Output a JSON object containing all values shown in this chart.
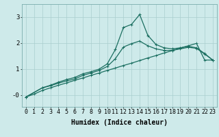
{
  "xlabel": "Humidex (Indice chaleur)",
  "bg_color": "#ceeaea",
  "line_color": "#1a6e60",
  "xlim": [
    -0.5,
    23.5
  ],
  "ylim": [
    -0.45,
    3.5
  ],
  "xticks": [
    0,
    1,
    2,
    3,
    4,
    5,
    6,
    7,
    8,
    9,
    10,
    11,
    12,
    13,
    14,
    15,
    16,
    17,
    18,
    19,
    20,
    21,
    22,
    23
  ],
  "yticks": [
    0,
    1,
    2,
    3
  ],
  "ytick_labels": [
    "-0",
    "1",
    "2",
    "3"
  ],
  "series1_x": [
    0,
    1,
    2,
    3,
    4,
    5,
    6,
    7,
    8,
    9,
    10,
    11,
    12,
    13,
    14,
    15,
    16,
    17,
    18,
    19,
    20,
    21,
    22,
    23
  ],
  "series1_y": [
    -0.07,
    0.04,
    0.18,
    0.28,
    0.38,
    0.47,
    0.57,
    0.66,
    0.76,
    0.85,
    0.95,
    1.04,
    1.14,
    1.23,
    1.33,
    1.43,
    1.52,
    1.62,
    1.71,
    1.81,
    1.9,
    1.99,
    1.35,
    1.35
  ],
  "series2_x": [
    0,
    2,
    3,
    4,
    5,
    6,
    7,
    8,
    9,
    10,
    11,
    12,
    13,
    14,
    15,
    16,
    17,
    18,
    19,
    20,
    21,
    22,
    23
  ],
  "series2_y": [
    -0.07,
    0.28,
    0.38,
    0.5,
    0.6,
    0.68,
    0.82,
    0.9,
    1.0,
    1.2,
    1.75,
    2.6,
    2.72,
    3.1,
    2.3,
    1.95,
    1.82,
    1.78,
    1.82,
    1.88,
    1.82,
    1.6,
    1.35
  ],
  "series3_x": [
    0,
    2,
    3,
    4,
    5,
    6,
    7,
    8,
    9,
    10,
    11,
    12,
    13,
    14,
    15,
    16,
    17,
    18,
    19,
    20,
    21,
    22,
    23
  ],
  "series3_y": [
    -0.07,
    0.28,
    0.36,
    0.46,
    0.55,
    0.62,
    0.76,
    0.85,
    0.95,
    1.1,
    1.4,
    1.85,
    1.98,
    2.08,
    1.9,
    1.78,
    1.72,
    1.72,
    1.78,
    1.84,
    1.8,
    1.58,
    1.35
  ],
  "grid_color": "#aacece",
  "marker": "+",
  "marker_size": 3.5,
  "linewidth": 0.9,
  "xlabel_fontsize": 7,
  "tick_fontsize": 6
}
